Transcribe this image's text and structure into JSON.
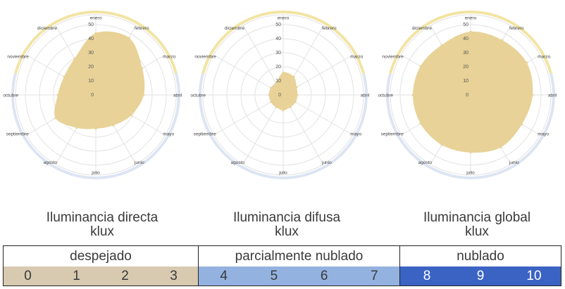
{
  "chart_data": [
    {
      "type": "radar",
      "title": "",
      "categories": [
        "enero",
        "febrero",
        "marzo",
        "abril",
        "mayo",
        "junio",
        "julio",
        "agosto",
        "septiembre",
        "octubre",
        "noviembre",
        "diciembre"
      ],
      "radial_ticks": [
        "0",
        "10",
        "20",
        "30",
        "40",
        "50"
      ],
      "rmax": 50,
      "series": [
        {
          "values": [
            44,
            47,
            38,
            34,
            29,
            25,
            24,
            27,
            33,
            27,
            26,
            30
          ]
        }
      ],
      "caption": [
        "Iluminancia directa",
        "klux"
      ],
      "rim": {
        "top_color": "#f2e4a3",
        "bottom_color": "#dde5f3"
      },
      "fill_color": "#e8d297"
    },
    {
      "type": "radar",
      "title": "",
      "categories": [
        "enero",
        "febrero",
        "marzo",
        "abril",
        "mayo",
        "junio",
        "julio",
        "agosto",
        "septiembre",
        "octubre",
        "noviembre",
        "diciembre"
      ],
      "radial_ticks": [
        "0",
        "10",
        "20",
        "30",
        "40",
        "50"
      ],
      "rmax": 50,
      "series": [
        {
          "values": [
            16,
            15,
            11,
            10,
            10,
            10,
            11,
            10,
            10,
            10,
            10,
            10
          ]
        }
      ],
      "caption": [
        "Iluminancia difusa",
        "klux"
      ],
      "rim": {
        "top_color": "#f2e4a3",
        "bottom_color": "#dde5f3"
      },
      "fill_color": "#e8d297"
    },
    {
      "type": "radar",
      "title": "",
      "categories": [
        "enero",
        "febrero",
        "marzo",
        "abril",
        "mayo",
        "junio",
        "julio",
        "agosto",
        "septiembre",
        "octubre",
        "noviembre",
        "diciembre"
      ],
      "radial_ticks": [
        "0",
        "10",
        "20",
        "30",
        "40",
        "50"
      ],
      "rmax": 50,
      "series": [
        {
          "values": [
            45,
            45,
            46,
            44,
            42,
            43,
            41,
            41,
            41,
            41,
            41,
            41
          ]
        }
      ],
      "caption": [
        "Iluminancia global",
        "klux"
      ],
      "rim": {
        "top_color": "#f2e4a3",
        "bottom_color": "#dde5f3"
      },
      "fill_color": "#e8d297"
    }
  ],
  "legend": {
    "groups": [
      {
        "label": "despejado",
        "color": "#d8cab0",
        "text_color": "#3a3a3a",
        "values": [
          "0",
          "1",
          "2",
          "3"
        ]
      },
      {
        "label": "parcialmente nublado",
        "color": "#93b2e0",
        "text_color": "#3a3a3a",
        "values": [
          "4",
          "5",
          "6",
          "7"
        ]
      },
      {
        "label": "nublado",
        "color": "#3b63c4",
        "text_color": "#ffffff",
        "values": [
          "8",
          "9",
          "10"
        ]
      }
    ]
  }
}
